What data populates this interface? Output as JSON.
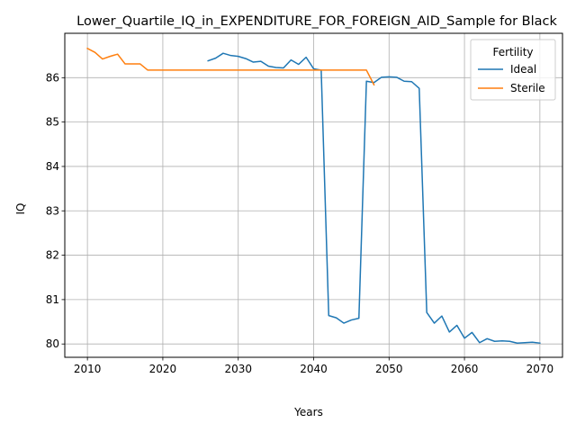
{
  "chart_data": {
    "type": "line",
    "title": "Lower_Quartile_IQ_in_EXPENDITURE_FOR_FOREIGN_AID_Sample for Black",
    "xlabel": "Years",
    "ylabel": "IQ",
    "xlim": [
      2007,
      2073
    ],
    "ylim": [
      79.7,
      87.0
    ],
    "x_ticks": [
      2010,
      2020,
      2030,
      2040,
      2050,
      2060,
      2070
    ],
    "y_ticks": [
      80,
      81,
      82,
      83,
      84,
      85,
      86
    ],
    "grid": true,
    "legend": {
      "title": "Fertility",
      "placement": "top-right"
    },
    "series": [
      {
        "name": "Ideal",
        "color": "#1f77b4",
        "x": [
          2026,
          2027,
          2028,
          2029,
          2030,
          2031,
          2032,
          2033,
          2034,
          2035,
          2036,
          2037,
          2038,
          2039,
          2040,
          2041,
          2042,
          2043,
          2044,
          2045,
          2046,
          2047,
          2048,
          2049,
          2050,
          2051,
          2052,
          2053,
          2054,
          2055,
          2056,
          2057,
          2058,
          2059,
          2060,
          2061,
          2062,
          2063,
          2064,
          2065,
          2066,
          2067,
          2068,
          2069,
          2070
        ],
        "values": [
          86.38,
          86.44,
          86.55,
          86.5,
          86.48,
          86.43,
          86.35,
          86.37,
          86.26,
          86.23,
          86.22,
          86.4,
          86.3,
          86.46,
          86.2,
          86.17,
          80.64,
          80.59,
          80.47,
          80.54,
          80.58,
          85.92,
          85.89,
          86.01,
          86.02,
          86.01,
          85.92,
          85.91,
          85.76,
          80.71,
          80.47,
          80.63,
          80.27,
          80.42,
          80.13,
          80.26,
          80.03,
          80.12,
          80.06,
          80.07,
          80.06,
          80.02,
          80.03,
          80.04,
          80.02
        ]
      },
      {
        "name": "Sterile",
        "color": "#ff7f0e",
        "x": [
          2010,
          2011,
          2012,
          2013,
          2014,
          2015,
          2016,
          2017,
          2018,
          2019,
          2020,
          2021,
          2022,
          2023,
          2024,
          2025,
          2026,
          2027,
          2028,
          2029,
          2030,
          2031,
          2032,
          2033,
          2034,
          2035,
          2036,
          2037,
          2038,
          2039,
          2040,
          2041,
          2042,
          2043,
          2044,
          2045,
          2046,
          2047,
          2048
        ],
        "values": [
          86.66,
          86.57,
          86.42,
          86.48,
          86.53,
          86.31,
          86.31,
          86.31,
          86.17,
          86.17,
          86.17,
          86.17,
          86.17,
          86.17,
          86.17,
          86.17,
          86.17,
          86.17,
          86.17,
          86.17,
          86.17,
          86.17,
          86.17,
          86.17,
          86.17,
          86.17,
          86.17,
          86.17,
          86.17,
          86.17,
          86.17,
          86.17,
          86.17,
          86.17,
          86.17,
          86.17,
          86.17,
          86.17,
          85.84
        ]
      }
    ]
  }
}
